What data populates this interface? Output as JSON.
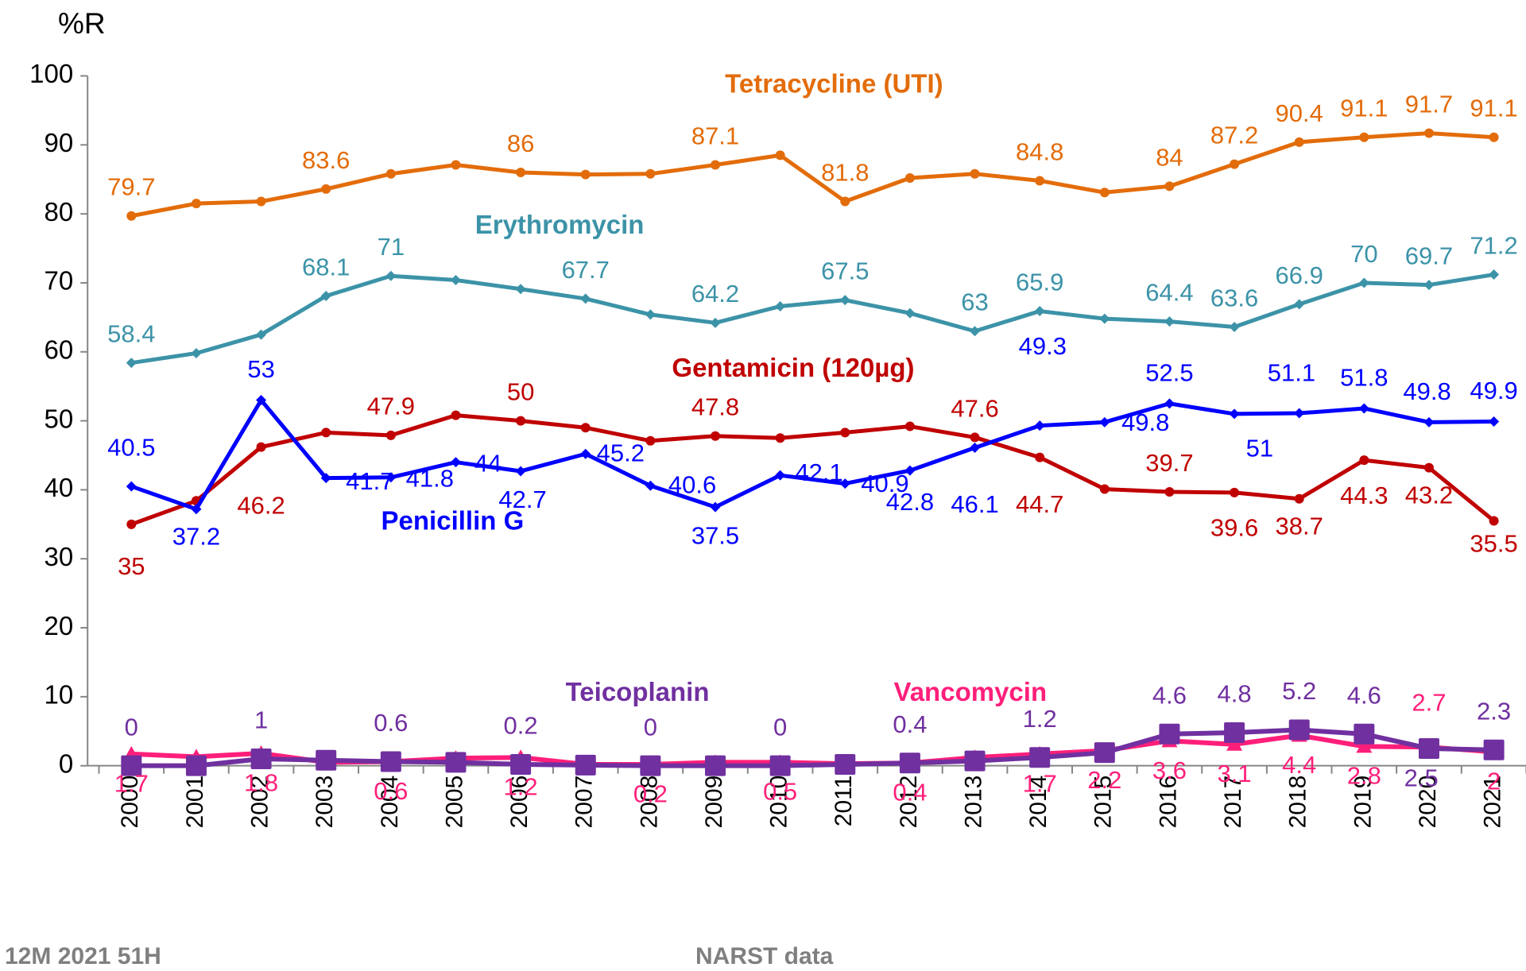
{
  "chart_data": {
    "type": "line",
    "y_label": "%R",
    "footer_left": "12M 2021 51H",
    "footer_right": "NARST data",
    "categories": [
      "2000",
      "2001",
      "2002",
      "2003",
      "2004",
      "2005",
      "2006",
      "2007",
      "2008",
      "2009",
      "2010",
      "2011",
      "2012",
      "2013",
      "2014",
      "2015",
      "2016",
      "2017",
      "2018",
      "2019",
      "2020",
      "2021"
    ],
    "ylim": [
      0,
      100
    ],
    "yticks": [
      0,
      10,
      20,
      30,
      40,
      50,
      60,
      70,
      80,
      90,
      100
    ],
    "series": [
      {
        "name": "Tetracycline (UTI)",
        "color": "#e36c0a",
        "marker": "circle",
        "values": [
          79.7,
          81.5,
          81.8,
          83.6,
          85.8,
          87.1,
          86,
          85.7,
          85.8,
          87.1,
          88.5,
          81.8,
          85.2,
          85.8,
          84.8,
          83.1,
          84,
          87.2,
          90.4,
          91.1,
          91.7,
          91.1
        ],
        "value_labels": [
          79.7,
          null,
          null,
          83.6,
          null,
          null,
          86,
          null,
          null,
          87.1,
          null,
          81.8,
          null,
          null,
          84.8,
          null,
          84,
          87.2,
          90.4,
          91.1,
          91.7,
          91.1
        ]
      },
      {
        "name": "Erythromycin",
        "color": "#3c93a8",
        "marker": "diamond",
        "values": [
          58.4,
          59.8,
          62.5,
          68.1,
          71,
          70.4,
          69.1,
          67.7,
          65.4,
          64.2,
          66.6,
          67.5,
          65.6,
          63,
          65.9,
          64.8,
          64.4,
          63.6,
          66.9,
          70,
          69.7,
          71.2
        ],
        "value_labels": [
          58.4,
          null,
          null,
          68.1,
          71,
          null,
          null,
          67.7,
          null,
          64.2,
          null,
          67.5,
          null,
          63,
          65.9,
          null,
          64.4,
          63.6,
          66.9,
          70,
          69.7,
          71.2
        ]
      },
      {
        "name": "Gentamicin (120µg)",
        "color": "#c00000",
        "marker": "circle",
        "values": [
          35,
          38.4,
          46.2,
          48.3,
          47.9,
          50.8,
          50,
          49,
          47.1,
          47.8,
          47.5,
          48.3,
          49.2,
          47.6,
          44.7,
          40.1,
          39.7,
          39.6,
          38.7,
          44.3,
          43.2,
          35.5
        ],
        "value_labels": [
          35,
          null,
          46.2,
          null,
          47.9,
          null,
          50,
          null,
          null,
          47.8,
          null,
          null,
          null,
          47.6,
          44.7,
          null,
          39.7,
          39.6,
          38.7,
          44.3,
          43.2,
          35.5
        ]
      },
      {
        "name": "Penicillin G",
        "color": "#0000ff",
        "marker": "diamond",
        "values": [
          40.5,
          37.2,
          53,
          41.7,
          41.8,
          44,
          42.7,
          45.2,
          40.6,
          37.5,
          42.1,
          40.9,
          42.8,
          46.1,
          49.3,
          49.8,
          52.5,
          51,
          51.1,
          51.8,
          49.8,
          49.9
        ],
        "value_labels": [
          40.5,
          37.2,
          53,
          41.7,
          41.8,
          44,
          42.7,
          45.2,
          40.6,
          37.5,
          42.1,
          40.9,
          42.8,
          46.1,
          49.3,
          49.8,
          52.5,
          51,
          51.1,
          51.8,
          49.8,
          49.9
        ]
      },
      {
        "name": "Vancomycin",
        "color": "#ff1f7a",
        "marker": "triangle",
        "values": [
          1.7,
          1.3,
          1.8,
          0.5,
          0.6,
          1.1,
          1.2,
          0.2,
          0.2,
          0.5,
          0.5,
          0.3,
          0.4,
          1.2,
          1.7,
          2.2,
          3.6,
          3.1,
          4.4,
          2.8,
          2.7,
          2
        ],
        "value_labels": [
          1.7,
          null,
          1.8,
          null,
          0.6,
          null,
          1.2,
          null,
          0.2,
          null,
          0.5,
          null,
          0.4,
          null,
          1.7,
          2.2,
          3.6,
          3.1,
          4.4,
          2.8,
          2.7,
          2
        ]
      },
      {
        "name": "Teicoplanin",
        "color": "#7030a0",
        "marker": "square",
        "values": [
          0,
          0,
          1,
          0.8,
          0.6,
          0.5,
          0.2,
          0.1,
          0,
          0,
          0,
          0.2,
          0.4,
          0.7,
          1.2,
          1.9,
          4.6,
          4.8,
          5.2,
          4.6,
          2.5,
          2.3
        ],
        "value_labels": [
          0,
          null,
          1,
          null,
          0.6,
          null,
          0.2,
          null,
          0,
          null,
          0,
          null,
          0.4,
          null,
          1.2,
          null,
          4.6,
          4.8,
          5.2,
          4.6,
          2.5,
          2.3
        ]
      }
    ]
  }
}
